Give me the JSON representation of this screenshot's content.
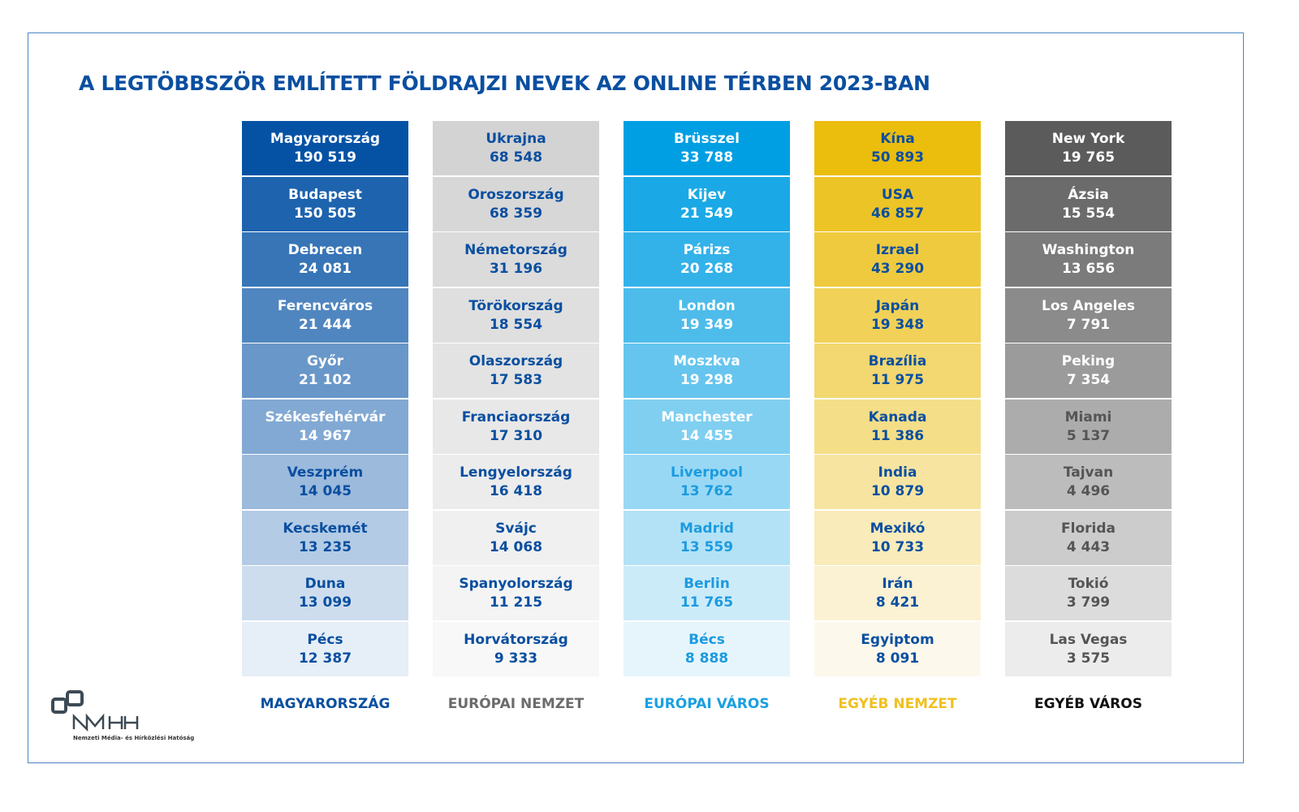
{
  "title": "A LEGTÖBBSZÖR EMLÍTETT FÖLDRAJZI NEVEK AZ ONLINE TÉRBEN 2023-BAN",
  "logo": {
    "abbr": "NMHH",
    "name": "Nemzeti Média- és Hírközlési Hatóság"
  },
  "chart_data": {
    "type": "table",
    "title": "A LEGTÖBBSZÖR EMLÍTETT FÖLDRAJZI NEVEK AZ ONLINE TÉRBEN 2023-BAN",
    "columns": [
      {
        "label": "MAGYARORSZÁG",
        "label_color": "#0a4fa0",
        "color_from": "#0552a5",
        "color_to": "#e6eef7",
        "text_light": "#ffffff",
        "text_dark": "#0a4fa0",
        "light_rows": 6,
        "items": [
          [
            "Magyarország",
            "190 519"
          ],
          [
            "Budapest",
            "150 505"
          ],
          [
            "Debrecen",
            "24 081"
          ],
          [
            "Ferencváros",
            "21 444"
          ],
          [
            "Győr",
            "21 102"
          ],
          [
            "Székesfehérvár",
            "14 967"
          ],
          [
            "Veszprém",
            "14 045"
          ],
          [
            "Kecskemét",
            "13 235"
          ],
          [
            "Duna",
            "13 099"
          ],
          [
            "Pécs",
            "12 387"
          ]
        ]
      },
      {
        "label": "EURÓPAI NEMZET",
        "label_color": "#6b6b6b",
        "color_from": "#d3d3d3",
        "color_to": "#f8f8f8",
        "text_light": "#0a4fa0",
        "text_dark": "#0a4fa0",
        "light_rows": 0,
        "items": [
          [
            "Ukrajna",
            "68 548"
          ],
          [
            "Oroszország",
            "68 359"
          ],
          [
            "Németország",
            "31 196"
          ],
          [
            "Törökország",
            "18 554"
          ],
          [
            "Olaszország",
            "17 583"
          ],
          [
            "Franciaország",
            "17 310"
          ],
          [
            "Lengyelország",
            "16 418"
          ],
          [
            "Svájc",
            "14 068"
          ],
          [
            "Spanyolország",
            "11 215"
          ],
          [
            "Horvátország",
            "9 333"
          ]
        ]
      },
      {
        "label": "EURÓPAI VÁROS",
        "label_color": "#1aa0e0",
        "color_from": "#009fe3",
        "color_to": "#e6f5fc",
        "text_light": "#ffffff",
        "text_dark": "#1c9be0",
        "light_rows": 6,
        "items": [
          [
            "Brüsszel",
            "33 788"
          ],
          [
            "Kijev",
            "21 549"
          ],
          [
            "Párizs",
            "20 268"
          ],
          [
            "London",
            "19 349"
          ],
          [
            "Moszkva",
            "19 298"
          ],
          [
            "Manchester",
            "14 455"
          ],
          [
            "Liverpool",
            "13 762"
          ],
          [
            "Madrid",
            "13 559"
          ],
          [
            "Berlin",
            "11 765"
          ],
          [
            "Bécs",
            "8 888"
          ]
        ]
      },
      {
        "label": "EGYÉB  NEMZET",
        "label_color": "#f0c020",
        "color_from": "#ebbd0c",
        "color_to": "#fdf8ec",
        "text_light": "#0a4fa0",
        "text_dark": "#0a4fa0",
        "light_rows": 0,
        "items": [
          [
            "Kína",
            "50 893"
          ],
          [
            "USA",
            "46 857"
          ],
          [
            "Izrael",
            "43 290"
          ],
          [
            "Japán",
            "19 348"
          ],
          [
            "Brazília",
            "11 975"
          ],
          [
            "Kanada",
            "11 386"
          ],
          [
            "India",
            "10 879"
          ],
          [
            "Mexikó",
            "10 733"
          ],
          [
            "Irán",
            "8 421"
          ],
          [
            "Egyiptom",
            "8 091"
          ]
        ]
      },
      {
        "label": "EGYÉB VÁROS",
        "label_color": "#111111",
        "color_from": "#5b5b5b",
        "color_to": "#ececec",
        "text_light": "#ffffff",
        "text_dark": "#555555",
        "light_rows": 5,
        "items": [
          [
            "New York",
            "19 765"
          ],
          [
            "Ázsia",
            "15 554"
          ],
          [
            "Washington",
            "13 656"
          ],
          [
            "Los Angeles",
            "7 791"
          ],
          [
            "Peking",
            "7 354"
          ],
          [
            "Miami",
            "5 137"
          ],
          [
            "Tajvan",
            "4 496"
          ],
          [
            "Florida",
            "4 443"
          ],
          [
            "Tokió",
            "3 799"
          ],
          [
            "Las Vegas",
            "3 575"
          ]
        ]
      }
    ]
  }
}
